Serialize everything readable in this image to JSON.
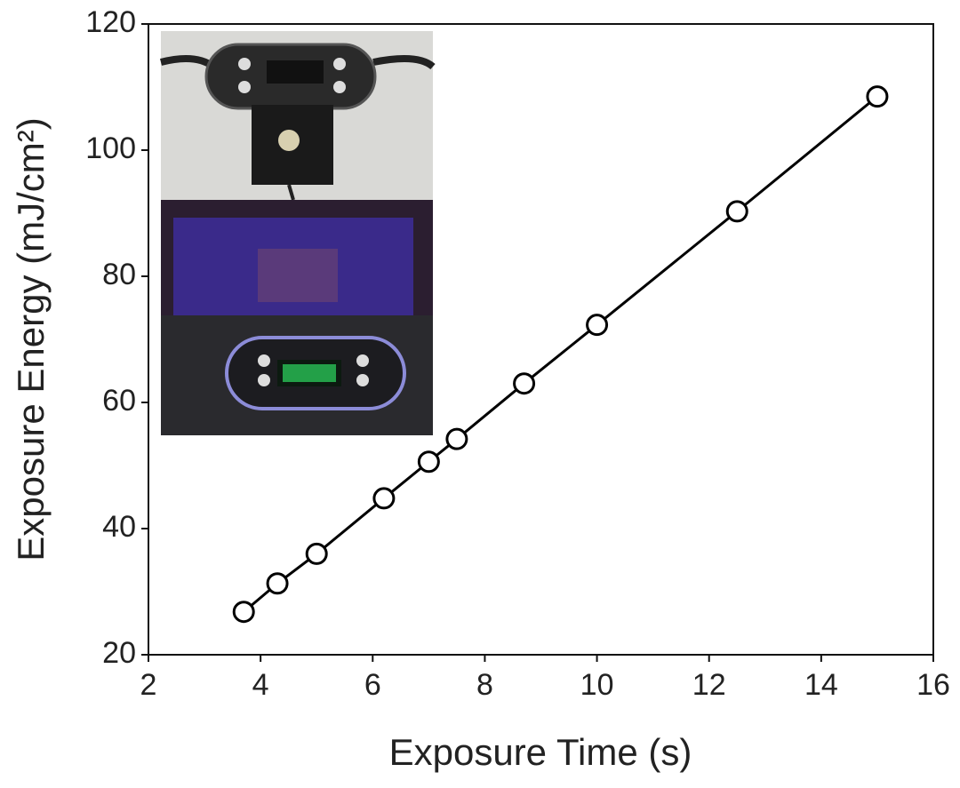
{
  "chart_data": {
    "type": "line",
    "x_label": "Exposure Time (s)",
    "y_label": "Exposure Energy (mJ/cm²)",
    "x": [
      3.7,
      4.3,
      5.0,
      6.2,
      7.0,
      7.5,
      8.7,
      10.0,
      12.5,
      15.0
    ],
    "values": [
      26.8,
      31.3,
      36,
      44.8,
      50.6,
      54.2,
      63,
      72.3,
      90.3,
      108.5
    ],
    "color": "#000000",
    "xlim": [
      2,
      16
    ],
    "xticks": [
      2,
      4,
      6,
      8,
      10,
      12,
      14,
      16
    ],
    "ylim": [
      20,
      120
    ],
    "yticks": [
      20,
      40,
      60,
      80,
      100,
      120
    ]
  }
}
